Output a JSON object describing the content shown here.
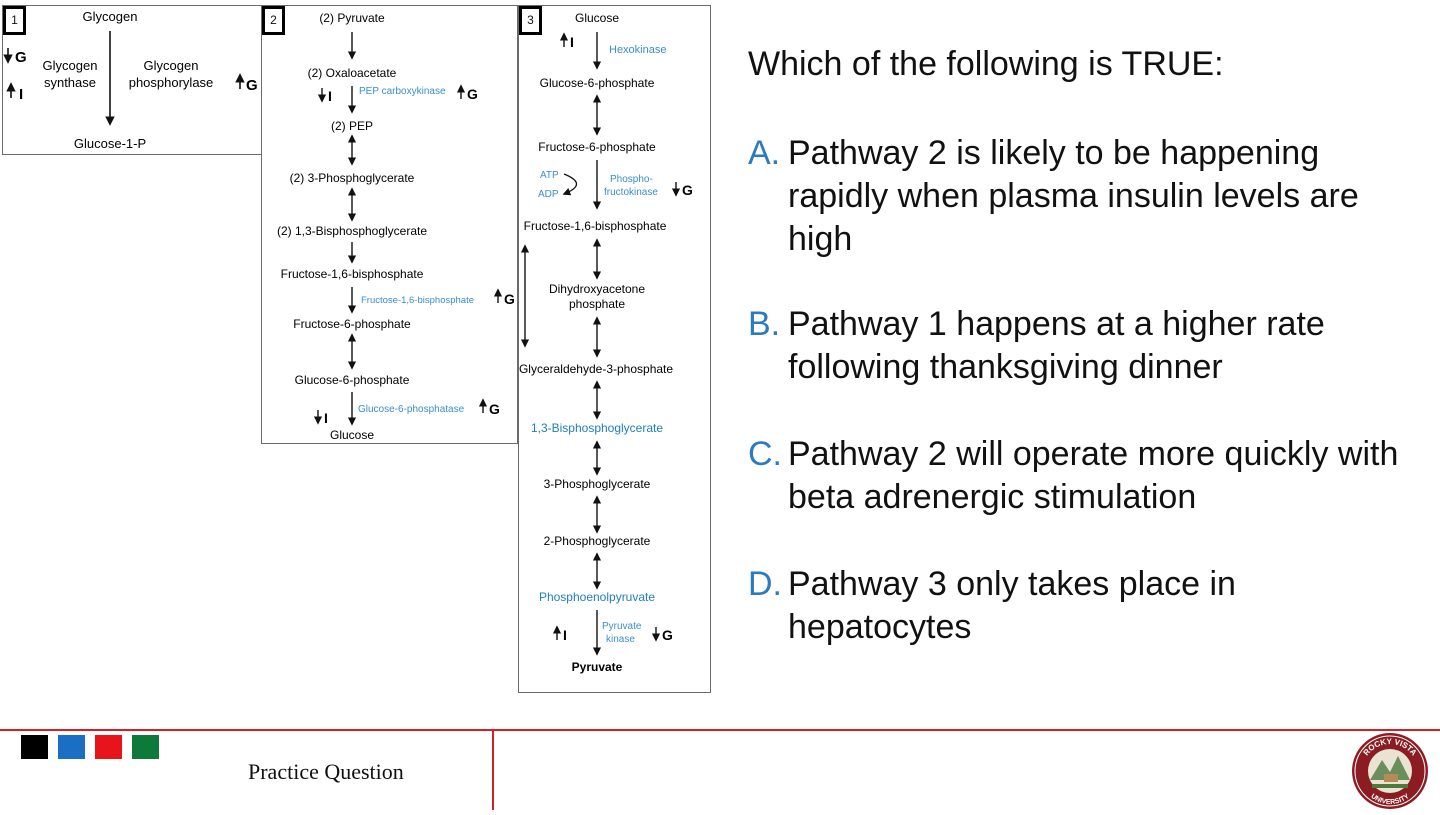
{
  "panel1": {
    "number": "1",
    "top": "Glycogen",
    "bottom": "Glucose-1-P",
    "left_enzyme_line1": "Glycogen",
    "left_enzyme_line2": "synthase",
    "right_enzyme_line1": "Glycogen",
    "right_enzyme_line2": "phosphorylase",
    "left_hormone_1": "G",
    "left_hormone_2": "I",
    "right_hormone": "G"
  },
  "panel2": {
    "number": "2",
    "metabolites": [
      "(2) Pyruvate",
      "(2) Oxaloacetate",
      "(2) PEP",
      "(2) 3-Phosphoglycerate",
      "(2) 1,3-Bisphosphoglycerate",
      "Fructose-1,6-bisphosphate",
      "Fructose-6-phosphate",
      "Glucose-6-phosphate",
      "Glucose"
    ],
    "enzymes": [
      "PEP carboxykinase",
      "Fructose-1,6-bisphosphate",
      "Glucose-6-phosphatase"
    ],
    "hormones": {
      "pepck_left": "I",
      "pepck_right": "G",
      "fbp_right": "G",
      "g6p_left": "I",
      "g6p_right": "G"
    }
  },
  "panel3": {
    "number": "3",
    "metabolites": [
      "Glucose",
      "Glucose-6-phosphate",
      "Fructose-6-phosphate",
      "Fructose-1,6-bisphosphate",
      "Dihydroxyacetone",
      "phosphate",
      "Glyceraldehyde-3-phosphate",
      "1,3-Bisphosphoglycerate",
      "3-Phosphoglycerate",
      "2-Phosphoglycerate",
      "Phosphoenolpyruvate",
      "Pyruvate"
    ],
    "enzymes": {
      "hexokinase": "Hexokinase",
      "pfk_line1": "Phospho-",
      "pfk_line2": "fructokinase",
      "pk_line1": "Pyruvate",
      "pk_line2": "kinase",
      "atp": "ATP",
      "adp": "ADP"
    },
    "hormones": {
      "hex_left": "I",
      "pfk_right": "G",
      "pk_left": "I",
      "pk_right": "G"
    }
  },
  "question": {
    "stem": "Which of the following is TRUE:",
    "options": [
      {
        "letter": "A.",
        "text": "Pathway 2 is likely to be happening rapidly when plasma insulin levels are high"
      },
      {
        "letter": "B.",
        "text": "Pathway 1 happens at a higher rate following thanksgiving dinner"
      },
      {
        "letter": "C.",
        "text": "Pathway 2 will operate more quickly with beta adrenergic stimulation"
      },
      {
        "letter": "D.",
        "text": "Pathway 3 only takes place in hepatocytes"
      }
    ]
  },
  "footer": {
    "title": "Practice Question",
    "squares": [
      "#000000",
      "#1a6fc4",
      "#e8141b",
      "#0e7a3a"
    ],
    "accent": "#d32027",
    "logo_top": "ROCKY VISTA",
    "logo_bottom": "UNIVERSITY"
  },
  "colors": {
    "enzyme_blue": "#3a8fc8",
    "option_letter": "#2c7bbf"
  }
}
